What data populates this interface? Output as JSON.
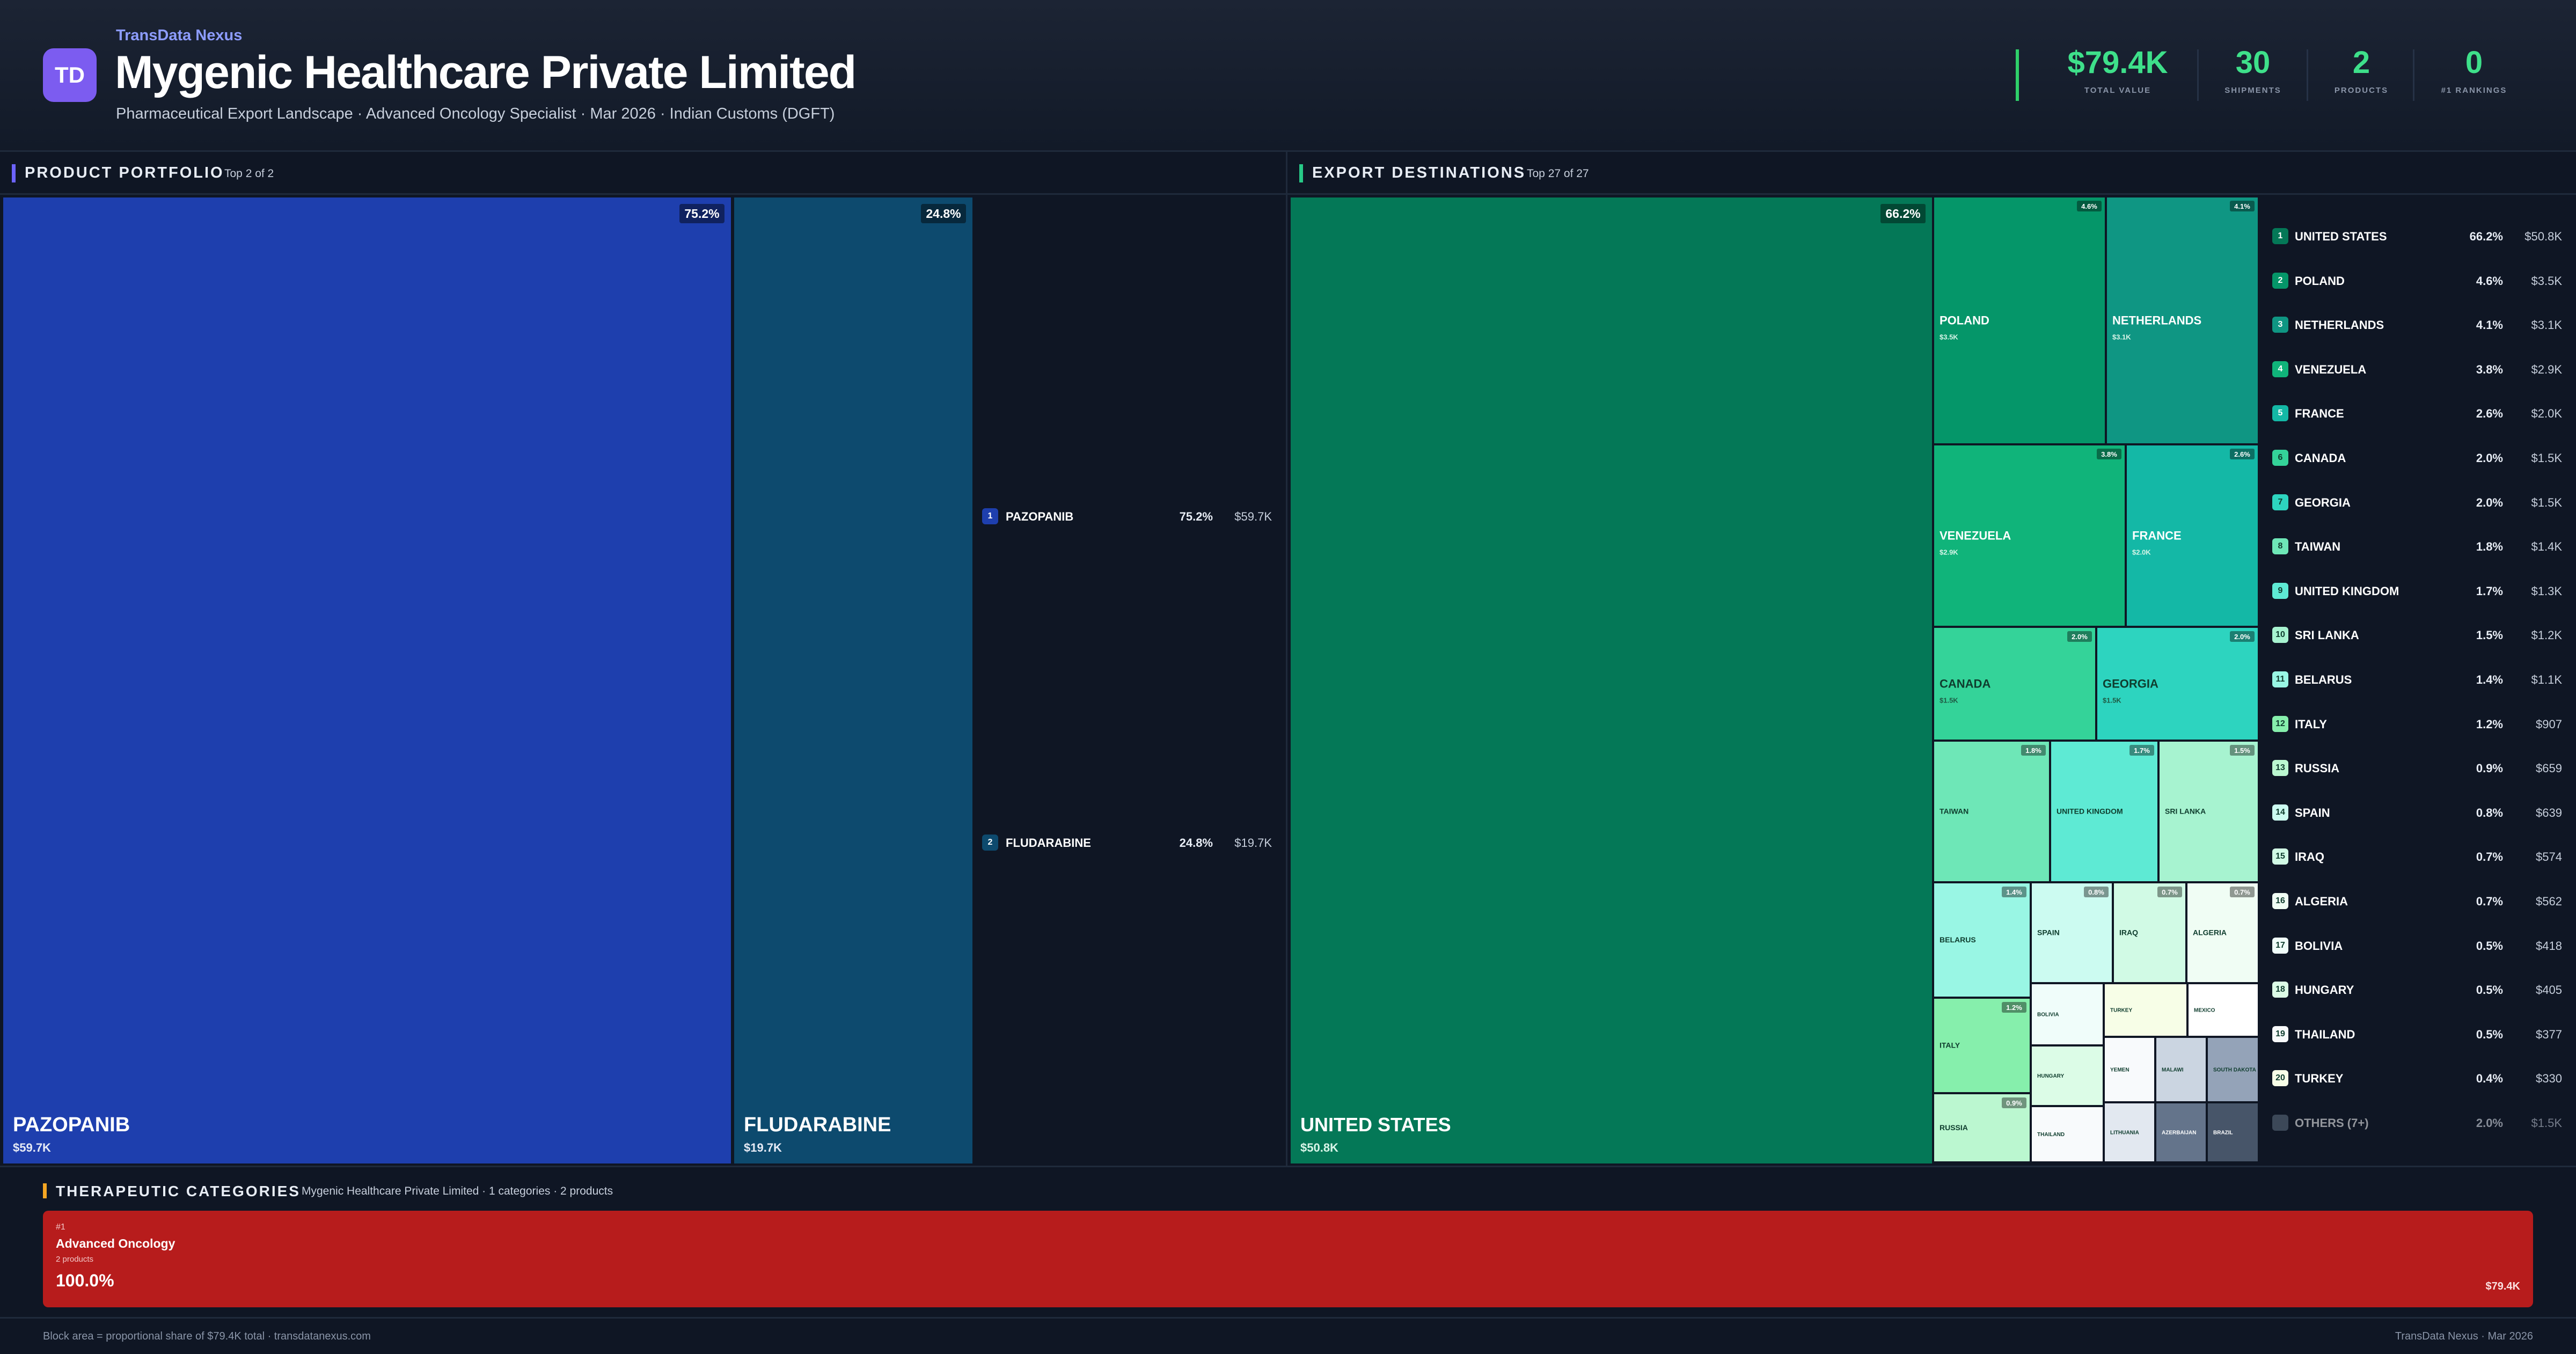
{
  "header": {
    "logo_text": "TD",
    "brand": "TransData Nexus",
    "title": "Mygenic Healthcare Private Limited",
    "subtitle": "Pharmaceutical Export Landscape · Advanced Oncology Specialist · Mar 2026 · Indian Customs (DGFT)",
    "kpis": [
      {
        "value": "$79.4K",
        "label": "TOTAL VALUE"
      },
      {
        "value": "30",
        "label": "SHIPMENTS"
      },
      {
        "value": "2",
        "label": "PRODUCTS"
      },
      {
        "value": "0",
        "label": "#1 RANKINGS"
      }
    ]
  },
  "sections": {
    "products": {
      "title": "PRODUCT PORTFOLIO",
      "sub": "Top 2 of 2"
    },
    "destinations": {
      "title": "EXPORT DESTINATIONS",
      "sub": "Top 27 of 27"
    }
  },
  "colors": {
    "accent_product": "#6c63ff",
    "accent_dest": "#27c987",
    "accent_category": "#f5a623",
    "category_block": "#b71c1c",
    "product_1": "#1e3fae",
    "product_2": "#0d4a6e"
  },
  "chart_data": [
    {
      "type": "treemap",
      "title": "PRODUCT PORTFOLIO",
      "items": [
        {
          "name": "PAZOPANIB",
          "value": 59700,
          "value_label": "$59.7K",
          "pct": "75.2%"
        },
        {
          "name": "FLUDARABINE",
          "value": 19700,
          "value_label": "$19.7K",
          "pct": "24.8%"
        }
      ]
    },
    {
      "type": "treemap",
      "title": "EXPORT DESTINATIONS",
      "items": [
        {
          "rank": 1,
          "name": "UNITED STATES",
          "value": 50800,
          "value_label": "$50.8K",
          "pct": "66.2%",
          "color": "#047857"
        },
        {
          "rank": 2,
          "name": "POLAND",
          "value": 3500,
          "value_label": "$3.5K",
          "pct": "4.6%",
          "color": "#059669"
        },
        {
          "rank": 3,
          "name": "NETHERLANDS",
          "value": 3100,
          "value_label": "$3.1K",
          "pct": "4.1%",
          "color": "#0f9683"
        },
        {
          "rank": 4,
          "name": "VENEZUELA",
          "value": 2900,
          "value_label": "$2.9K",
          "pct": "3.8%",
          "color": "#10b47a"
        },
        {
          "rank": 5,
          "name": "FRANCE",
          "value": 2000,
          "value_label": "$2.0K",
          "pct": "2.6%",
          "color": "#14b8a6"
        },
        {
          "rank": 6,
          "name": "CANADA",
          "value": 1500,
          "value_label": "$1.5K",
          "pct": "2.0%",
          "color": "#34d399"
        },
        {
          "rank": 7,
          "name": "GEORGIA",
          "value": 1500,
          "value_label": "$1.5K",
          "pct": "2.0%",
          "color": "#2dd4bf"
        },
        {
          "rank": 8,
          "name": "TAIWAN",
          "value": 1400,
          "value_label": "$1.4K",
          "pct": "1.8%",
          "color": "#6ee7b7"
        },
        {
          "rank": 9,
          "name": "UNITED KINGDOM",
          "value": 1300,
          "value_label": "$1.3K",
          "pct": "1.7%",
          "color": "#5eead4"
        },
        {
          "rank": 10,
          "name": "SRI LANKA",
          "value": 1200,
          "value_label": "$1.2K",
          "pct": "1.5%",
          "color": "#a7f3d0"
        },
        {
          "rank": 11,
          "name": "BELARUS",
          "value": 1100,
          "value_label": "$1.1K",
          "pct": "1.4%",
          "color": "#99f6e4"
        },
        {
          "rank": 12,
          "name": "ITALY",
          "value": 907,
          "value_label": "$907",
          "pct": "1.2%",
          "color": "#86efac"
        },
        {
          "rank": 13,
          "name": "RUSSIA",
          "value": 659,
          "value_label": "$659",
          "pct": "0.9%",
          "color": "#bbf7d0"
        },
        {
          "rank": 14,
          "name": "SPAIN",
          "value": 639,
          "value_label": "$639",
          "pct": "0.8%",
          "color": "#ccfbf1"
        },
        {
          "rank": 15,
          "name": "IRAQ",
          "value": 574,
          "value_label": "$574",
          "pct": "0.7%",
          "color": "#d1fae5"
        },
        {
          "rank": 16,
          "name": "ALGERIA",
          "value": 562,
          "value_label": "$562",
          "pct": "0.7%",
          "color": "#f0fdf4"
        },
        {
          "rank": 17,
          "name": "BOLIVIA",
          "value": 418,
          "value_label": "$418",
          "pct": "0.5%",
          "color": "#f0fdfa"
        },
        {
          "rank": 18,
          "name": "HUNGARY",
          "value": 405,
          "value_label": "$405",
          "pct": "0.5%",
          "color": "#dcfce7"
        },
        {
          "rank": 19,
          "name": "THAILAND",
          "value": 377,
          "value_label": "$377",
          "pct": "0.5%",
          "color": "#f8fafc"
        },
        {
          "rank": 20,
          "name": "TURKEY",
          "value": 330,
          "value_label": "$330",
          "pct": "0.4%",
          "color": "#f7fee7"
        }
      ],
      "small_tiles": [
        "MEXICO",
        "YEMEN",
        "MALAWI",
        "SOUTH DAKOTA",
        "LITHUANIA",
        "AZERBAIJAN",
        "BRAZIL"
      ],
      "others": {
        "name": "OTHERS (7+)",
        "value_label": "$1.5K",
        "pct": "2.0%",
        "color": "#3c4858"
      }
    },
    {
      "type": "treemap",
      "title": "THERAPEUTIC CATEGORIES",
      "items": [
        {
          "rank": "#1",
          "name": "Advanced Oncology",
          "count_label": "2 products",
          "pct": "100.0%",
          "value_label": "$79.4K"
        }
      ]
    }
  ],
  "categories": {
    "title": "THERAPEUTIC CATEGORIES",
    "sub": "Mygenic Healthcare Private Limited · 1 categories · 2 products"
  },
  "footer": {
    "left": "Block area = proportional share of $79.4K total · transdatanexus.com",
    "right": "TransData Nexus · Mar 2026"
  }
}
